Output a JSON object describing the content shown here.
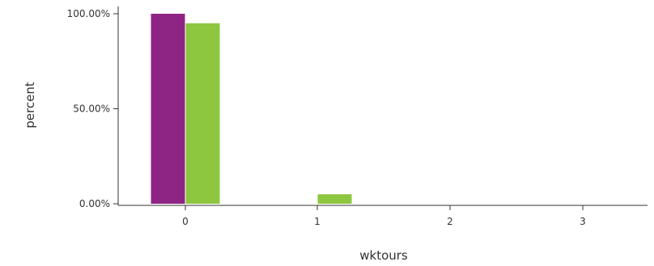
{
  "chart_data": {
    "type": "bar",
    "xlabel": "wktours",
    "ylabel": "percent",
    "categories": [
      "0",
      "1",
      "2",
      "3"
    ],
    "y_ticks": [
      "0.00%",
      "50.00%",
      "100.00%"
    ],
    "ylim": [
      0,
      100
    ],
    "grid": false,
    "series": [
      {
        "values": [
          100,
          0,
          0,
          0
        ],
        "color": "#8e2585"
      },
      {
        "values": [
          95,
          5,
          0,
          0
        ],
        "color": "#8dc63f"
      }
    ]
  }
}
